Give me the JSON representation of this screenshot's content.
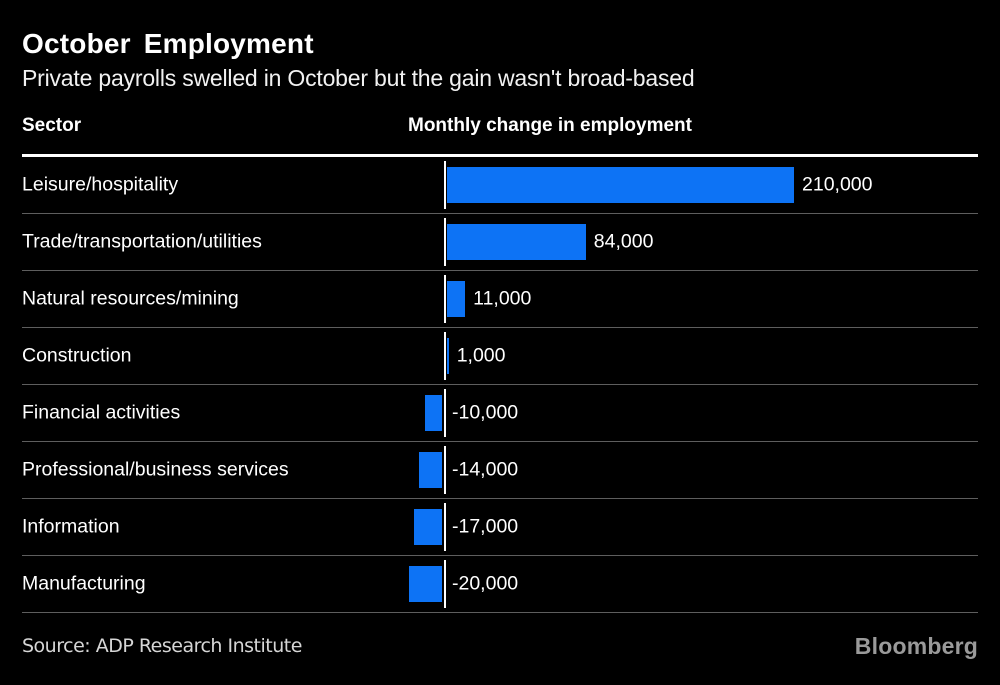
{
  "header": {
    "title": "October Employment",
    "subtitle": "Private payrolls swelled in October but the gain wasn't broad-based"
  },
  "table": {
    "col1_header": "Sector",
    "col2_header": "Monthly change in employment"
  },
  "chart_data": {
    "type": "bar",
    "orientation": "horizontal",
    "title": "October Employment",
    "subtitle": "Private payrolls swelled in October but the gain wasn't broad-based",
    "xlabel": "Monthly change in employment",
    "ylabel": "Sector",
    "categories": [
      "Leisure/hospitality",
      "Trade/transportation/utilities",
      "Natural resources/mining",
      "Construction",
      "Financial activities",
      "Professional/business services",
      "Information",
      "Manufacturing"
    ],
    "values": [
      210000,
      84000,
      11000,
      1000,
      -10000,
      -14000,
      -17000,
      -20000
    ],
    "value_labels": [
      "210,000",
      "84,000",
      "11,000",
      "1,000",
      "-10,000",
      "-14,000",
      "-17,000",
      "-20,000"
    ],
    "xlim": [
      -20000,
      210000
    ],
    "grid": false,
    "legend": false,
    "bar_color": "#0d73f5",
    "baseline_color": "#ffffff"
  },
  "footer": {
    "source": "Source: ADP Research Institute",
    "brand": "Bloomberg"
  },
  "colors": {
    "background": "#000000",
    "bar": "#0d73f5",
    "separator": "#5e5e5e",
    "header_rule": "#ffffff",
    "text": "#ffffff",
    "source_text": "#d6d6d6",
    "brand_text": "#9a9a9a"
  }
}
